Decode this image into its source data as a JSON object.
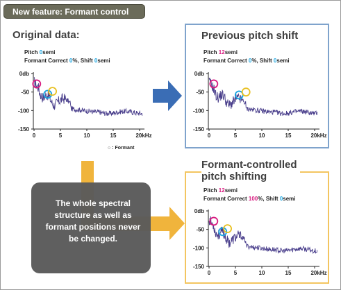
{
  "banner": "New feature: Formant control",
  "legend_text": "○ : Formant",
  "note": "The whole spectral structure as well as formant positions never be changed.",
  "colors": {
    "pink": "#d81b80",
    "blue": "#19a4e0",
    "curve": "#4a3f8c",
    "orange_arrow": "#f0b43c",
    "blue_arrow": "#3a6db5",
    "panel_blue": "#7fa3cc",
    "panel_orange": "#f3c560"
  },
  "panels": [
    {
      "title": "Original data:",
      "pitch_label": "Pitch ",
      "pitch_value": "0",
      "pitch_unit": "semi",
      "formant_label": "Formant Correct ",
      "formant_value": "0",
      "formant_unit": "%, Shift ",
      "shift_value": "0",
      "shift_unit": "semi",
      "y_ticks": [
        "0db",
        "-50",
        "-100",
        "-150"
      ],
      "x_ticks": [
        "0",
        "5",
        "10",
        "15",
        "20kHz"
      ]
    },
    {
      "title": "Previous pitch shift",
      "pitch_label": "Pitch ",
      "pitch_value": "12",
      "pitch_unit": "semi",
      "formant_label": "Formant Correct ",
      "formant_value": "0",
      "formant_unit": "%, Shift ",
      "shift_value": "0",
      "shift_unit": "semi",
      "y_ticks": [
        "0db",
        "-50",
        "-100",
        "-150"
      ],
      "x_ticks": [
        "0",
        "5",
        "10",
        "15",
        "20kHz"
      ]
    },
    {
      "title": "Formant-controlled pitch shifting",
      "title_line1": "Formant-controlled",
      "title_line2": "pitch shifting",
      "pitch_label": "Pitch ",
      "pitch_value": "12",
      "pitch_unit": "semi",
      "formant_label": "Formant Correct ",
      "formant_value": "100",
      "formant_unit": "%, Shift ",
      "shift_value": "0",
      "shift_unit": "semi",
      "y_ticks": [
        "0db",
        "-50",
        "-100",
        "-150"
      ],
      "x_ticks": [
        "0",
        "5",
        "10",
        "15",
        "20kHz"
      ]
    }
  ]
}
